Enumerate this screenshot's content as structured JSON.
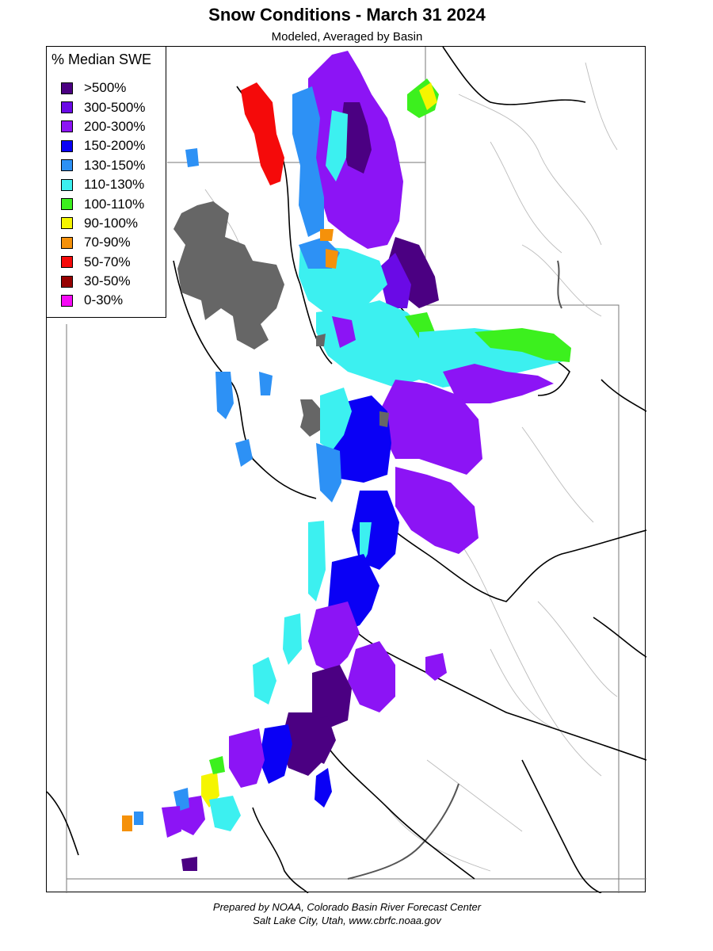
{
  "title": "Snow Conditions - March 31 2024",
  "subtitle": "Modeled, Averaged by Basin",
  "legend": {
    "title": "% Median SWE",
    "items": [
      {
        "label": ">500%",
        "color": "#4b0082"
      },
      {
        "label": "300-500%",
        "color": "#6a0ae6"
      },
      {
        "label": "200-300%",
        "color": "#8c14f5"
      },
      {
        "label": "150-200%",
        "color": "#0a00f5"
      },
      {
        "label": "130-150%",
        "color": "#2d91f5"
      },
      {
        "label": "110-130%",
        "color": "#3cf0f0"
      },
      {
        "label": "100-110%",
        "color": "#3cf01e"
      },
      {
        "label": "90-100%",
        "color": "#f5f500"
      },
      {
        "label": "70-90%",
        "color": "#f5910a"
      },
      {
        "label": "50-70%",
        "color": "#f50a0a"
      },
      {
        "label": "30-50%",
        "color": "#960000"
      },
      {
        "label": "0-30%",
        "color": "#f50af5"
      }
    ]
  },
  "map": {
    "lake_color": "#666666",
    "region_outline_color": "#000000",
    "river_color": "#aaaaaa"
  },
  "footer": {
    "line1": "Prepared by NOAA, Colorado Basin River Forecast Center",
    "line2": "Salt Lake City, Utah, www.cbrfc.noaa.gov"
  }
}
